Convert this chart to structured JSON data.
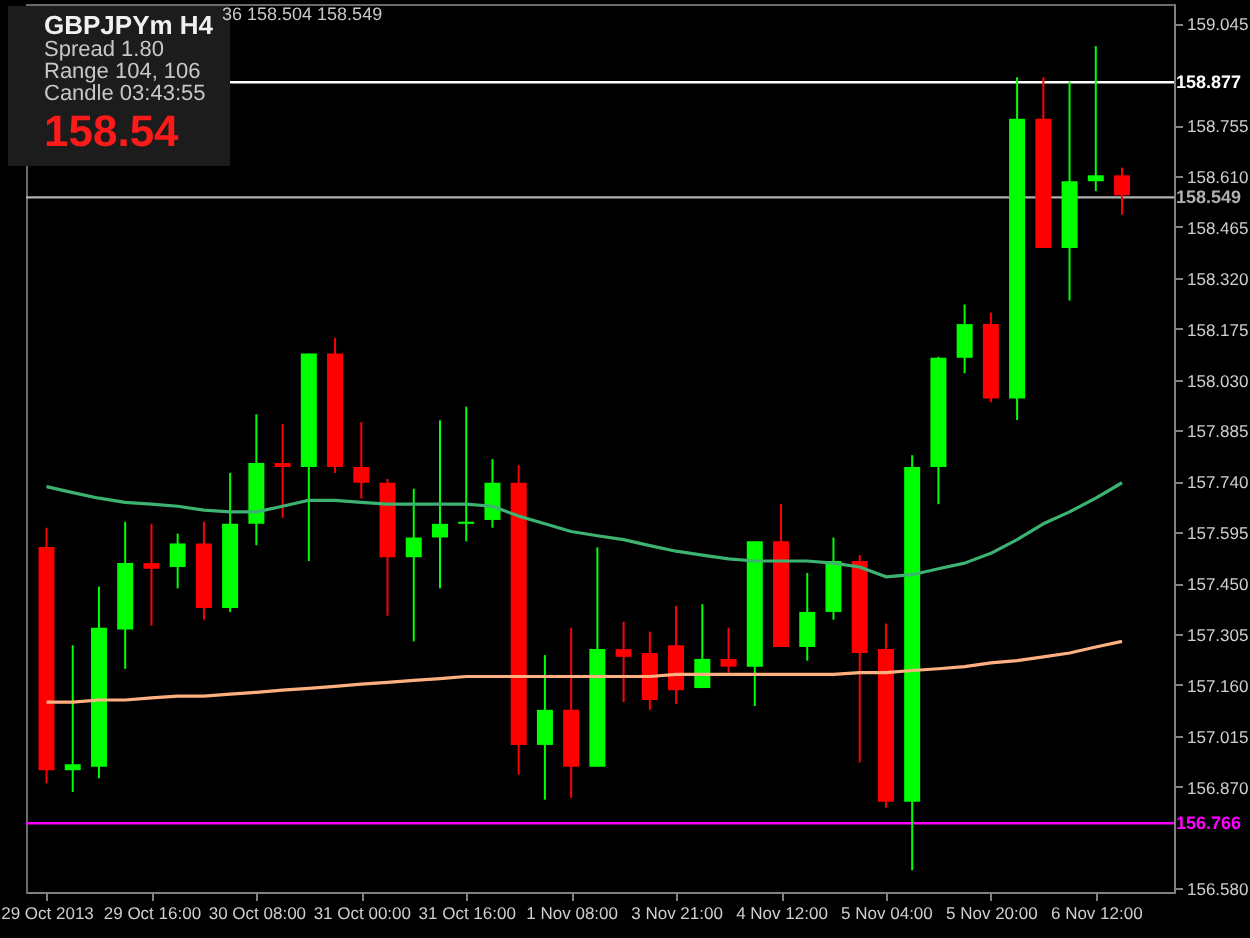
{
  "chart_data": {
    "type": "candlestick",
    "title": "GBPJPYm H4",
    "annotations": [
      "Spread 1.80",
      "Range 104, 106",
      "Candle 03:43:55",
      "158.54",
      "36 158.504 158.549"
    ],
    "categories": [
      "29 Oct 2013",
      null,
      null,
      null,
      "29 Oct 16:00",
      null,
      null,
      null,
      "30 Oct 08:00",
      null,
      null,
      null,
      "31 Oct 00:00",
      null,
      null,
      null,
      "31 Oct 16:00",
      null,
      null,
      null,
      "1 Nov 08:00",
      null,
      null,
      null,
      "3 Nov 21:00",
      null,
      null,
      null,
      "4 Nov 12:00",
      null,
      null,
      null,
      "5 Nov 04:00",
      null,
      null,
      null,
      "5 Nov 20:00",
      null,
      null,
      null,
      "6 Nov 12:00",
      null
    ],
    "ohlc": [
      [
        157.553,
        157.608,
        156.88,
        156.917
      ],
      [
        156.917,
        157.273,
        156.855,
        156.934
      ],
      [
        156.927,
        157.44,
        156.894,
        157.323
      ],
      [
        157.318,
        157.625,
        157.206,
        157.507
      ],
      [
        157.507,
        157.619,
        157.329,
        157.491
      ],
      [
        157.496,
        157.591,
        157.435,
        157.563
      ],
      [
        157.563,
        157.625,
        157.346,
        157.379
      ],
      [
        157.379,
        157.764,
        157.368,
        157.619
      ],
      [
        157.619,
        157.931,
        157.558,
        157.792
      ],
      [
        157.792,
        157.903,
        157.636,
        157.781
      ],
      [
        157.781,
        158.104,
        157.513,
        158.104
      ],
      [
        158.104,
        158.149,
        157.764,
        157.781
      ],
      [
        157.781,
        157.909,
        157.691,
        157.736
      ],
      [
        157.736,
        157.747,
        157.357,
        157.524
      ],
      [
        157.524,
        157.719,
        157.284,
        157.58
      ],
      [
        157.58,
        157.914,
        157.435,
        157.619
      ],
      [
        157.619,
        157.953,
        157.569,
        157.625
      ],
      [
        157.63,
        157.803,
        157.608,
        157.736
      ],
      [
        157.736,
        157.786,
        156.905,
        156.989
      ],
      [
        156.989,
        157.245,
        156.833,
        157.089
      ],
      [
        157.089,
        157.323,
        156.838,
        156.927
      ],
      [
        156.927,
        157.552,
        156.927,
        157.262
      ],
      [
        157.262,
        157.34,
        157.111,
        157.24
      ],
      [
        157.251,
        157.312,
        157.089,
        157.117
      ],
      [
        157.273,
        157.385,
        157.106,
        157.145
      ],
      [
        157.151,
        157.39,
        157.151,
        157.234
      ],
      [
        157.234,
        157.323,
        157.195,
        157.212
      ],
      [
        157.212,
        157.569,
        157.1,
        157.569
      ],
      [
        157.569,
        157.675,
        157.268,
        157.268
      ],
      [
        157.268,
        157.479,
        157.229,
        157.368
      ],
      [
        157.368,
        157.58,
        157.346,
        157.513
      ],
      [
        157.513,
        157.53,
        156.939,
        157.251
      ],
      [
        157.262,
        157.335,
        156.81,
        156.827
      ],
      [
        156.827,
        157.814,
        156.632,
        157.781
      ],
      [
        157.781,
        158.095,
        157.675,
        158.092
      ],
      [
        158.092,
        158.244,
        158.048,
        158.188
      ],
      [
        158.188,
        158.221,
        157.965,
        157.976
      ],
      [
        157.976,
        158.891,
        157.915,
        158.773
      ],
      [
        158.773,
        158.891,
        158.405,
        158.405
      ],
      [
        158.405,
        158.879,
        158.255,
        158.595
      ],
      [
        158.595,
        158.98,
        158.567,
        158.612
      ],
      [
        158.612,
        158.634,
        158.5,
        158.555
      ]
    ],
    "colors": [
      "#ff0000",
      "#00ff00",
      "#00ff00",
      "#00ff00",
      "#ff0000",
      "#00ff00",
      "#ff0000",
      "#00ff00",
      "#00ff00",
      "#ff0000",
      "#00ff00",
      "#ff0000",
      "#ff0000",
      "#ff0000",
      "#00ff00",
      "#00ff00",
      "#00ff00",
      "#00ff00",
      "#ff0000",
      "#00ff00",
      "#ff0000",
      "#00ff00",
      "#ff0000",
      "#ff0000",
      "#ff0000",
      "#00ff00",
      "#ff0000",
      "#00ff00",
      "#ff0000",
      "#00ff00",
      "#00ff00",
      "#ff0000",
      "#ff0000",
      "#00ff00",
      "#00ff00",
      "#00ff00",
      "#ff0000",
      "#00ff00",
      "#ff0000",
      "#00ff00",
      "#00ff00",
      "#ff0000"
    ],
    "series": [
      {
        "type": "line",
        "color": "#3cb371",
        "values": [
          157.725,
          157.708,
          157.692,
          157.68,
          157.675,
          157.669,
          157.658,
          157.653,
          157.653,
          157.669,
          157.686,
          157.686,
          157.68,
          157.675,
          157.675,
          157.675,
          157.675,
          157.669,
          157.641,
          157.619,
          157.597,
          157.585,
          157.574,
          157.557,
          157.541,
          157.53,
          157.519,
          157.513,
          157.513,
          157.513,
          157.507,
          157.496,
          157.468,
          157.474,
          157.491,
          157.507,
          157.535,
          157.574,
          157.619,
          157.653,
          157.692,
          157.736
        ]
      },
      {
        "type": "line",
        "color": "#ffb080",
        "values": [
          157.111,
          157.111,
          157.117,
          157.117,
          157.123,
          157.128,
          157.128,
          157.134,
          157.139,
          157.145,
          157.15,
          157.156,
          157.162,
          157.167,
          157.173,
          157.178,
          157.184,
          157.184,
          157.184,
          157.184,
          157.184,
          157.184,
          157.184,
          157.184,
          157.19,
          157.19,
          157.19,
          157.19,
          157.19,
          157.19,
          157.19,
          157.195,
          157.195,
          157.201,
          157.206,
          157.212,
          157.223,
          157.229,
          157.24,
          157.251,
          157.268,
          157.284
        ]
      }
    ],
    "ylim": [
      156.57,
      159.1
    ],
    "yticks": [
      159.045,
      158.755,
      {
        "value": 158.61,
        "label": "158.610"
      },
      158.465,
      {
        "value": 158.32,
        "label": "158.320"
      },
      158.175,
      {
        "value": 158.03,
        "label": "158.030"
      },
      157.885,
      {
        "value": 157.74,
        "label": "157.740"
      },
      157.595,
      {
        "value": 157.45,
        "label": "157.450"
      },
      157.305,
      {
        "value": 157.16,
        "label": "157.160"
      },
      157.015,
      {
        "value": 156.87,
        "label": "156.870"
      },
      {
        "value": 156.58,
        "label": "156.580"
      }
    ],
    "ref_lines": [
      {
        "axis": "y",
        "value": 158.877,
        "label": "158.877",
        "color": "#ffffff"
      },
      {
        "axis": "y",
        "value": 158.549,
        "label": "158.549",
        "color": "#b0b0b0"
      },
      {
        "axis": "y",
        "value": 156.766,
        "label": "156.766",
        "color": "#ff00ff"
      }
    ]
  }
}
